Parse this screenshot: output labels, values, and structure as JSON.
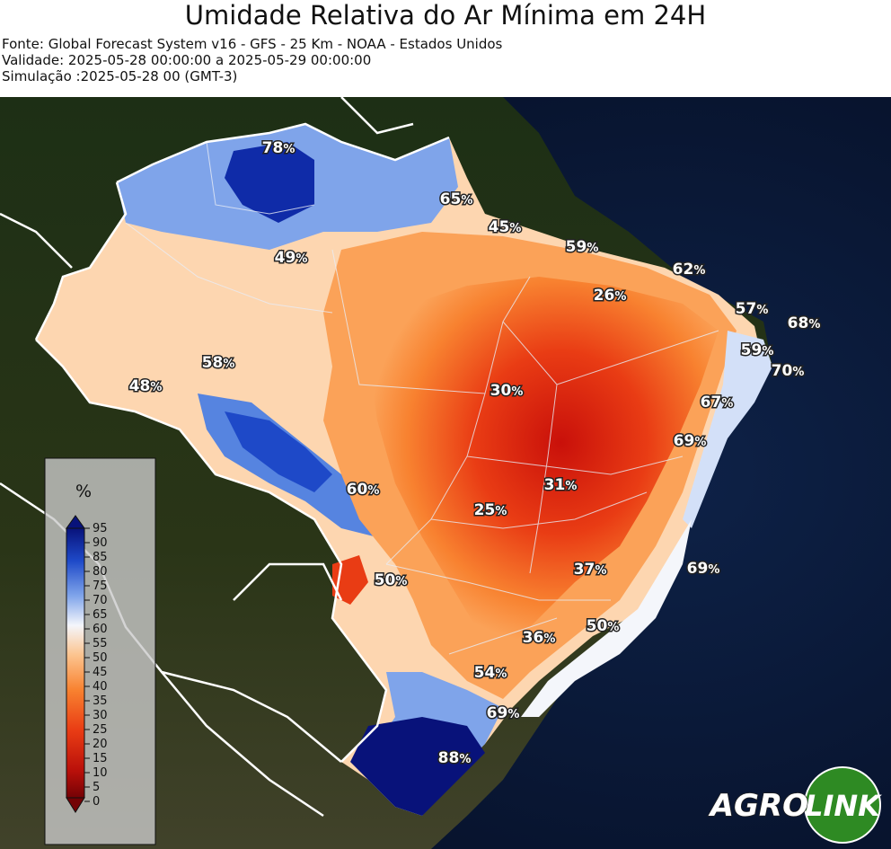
{
  "header": {
    "title": "Umidade Relativa do Ar Mínima em 24H",
    "source": "Fonte: Global Forecast System v16 - GFS - 25 Km - NOAA - Estados Unidos",
    "validity": "Validade: 2025-05-28 00:00:00 a 2025-05-29 00:00:00",
    "simulation": "Simulação :2025-05-28 00 (GMT-3)"
  },
  "colorbar": {
    "unit": "%",
    "ticks": [
      "95",
      "90",
      "85",
      "80",
      "75",
      "70",
      "65",
      "60",
      "55",
      "50",
      "45",
      "40",
      "35",
      "30",
      "25",
      "20",
      "15",
      "10",
      "5",
      "0"
    ],
    "colors": [
      "#08127a",
      "#0f2ba8",
      "#1e49c8",
      "#3566d8",
      "#5684e0",
      "#7fa4ea",
      "#a9c3f2",
      "#d3e0f8",
      "#f4f6fb",
      "#fde5cc",
      "#fcc48f",
      "#fba258",
      "#f88230",
      "#f25e1c",
      "#e93c14",
      "#d6200c",
      "#b9100a",
      "#960807",
      "#740205"
    ]
  },
  "labels": [
    {
      "value": "78",
      "unit": "%"
    },
    {
      "value": "65",
      "unit": "%"
    },
    {
      "value": "45",
      "unit": "%"
    },
    {
      "value": "59",
      "unit": "%"
    },
    {
      "value": "49",
      "unit": "%"
    },
    {
      "value": "62",
      "unit": "%"
    },
    {
      "value": "26",
      "unit": "%"
    },
    {
      "value": "57",
      "unit": "%"
    },
    {
      "value": "68",
      "unit": "%"
    },
    {
      "value": "59",
      "unit": "%"
    },
    {
      "value": "70",
      "unit": "%"
    },
    {
      "value": "58",
      "unit": "%"
    },
    {
      "value": "48",
      "unit": "%"
    },
    {
      "value": "30",
      "unit": "%"
    },
    {
      "value": "67",
      "unit": "%"
    },
    {
      "value": "69",
      "unit": "%"
    },
    {
      "value": "60",
      "unit": "%"
    },
    {
      "value": "31",
      "unit": "%"
    },
    {
      "value": "25",
      "unit": "%"
    },
    {
      "value": "50",
      "unit": "%"
    },
    {
      "value": "37",
      "unit": "%"
    },
    {
      "value": "69",
      "unit": "%"
    },
    {
      "value": "36",
      "unit": "%"
    },
    {
      "value": "50",
      "unit": "%"
    },
    {
      "value": "54",
      "unit": "%"
    },
    {
      "value": "69",
      "unit": "%"
    },
    {
      "value": "88",
      "unit": "%"
    }
  ],
  "logo": {
    "text_left": "AGRO",
    "text_right": "LINK"
  }
}
